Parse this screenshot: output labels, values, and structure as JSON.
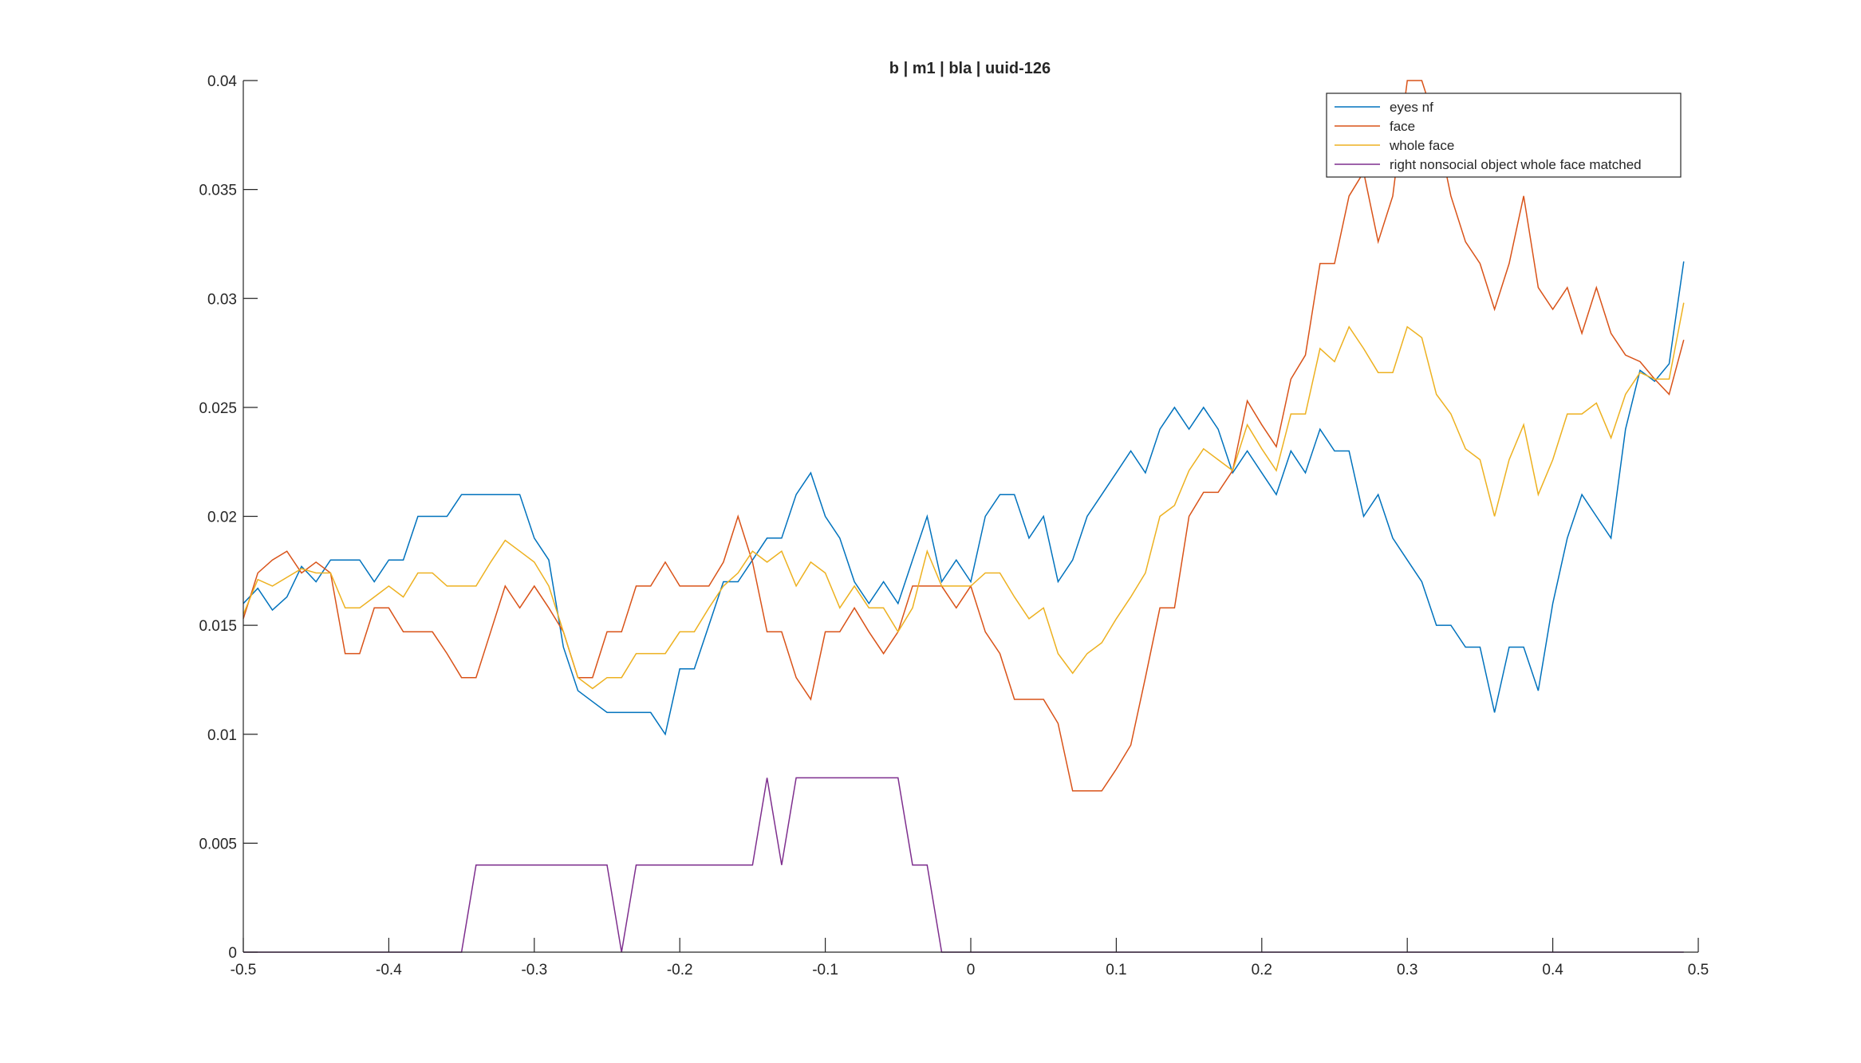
{
  "chart_data": {
    "type": "line",
    "title": "b | m1 | bla | uuid-126",
    "xlabel": "",
    "ylabel": "",
    "xlim": [
      -0.5,
      0.5
    ],
    "ylim": [
      0,
      0.04
    ],
    "xticks": [
      -0.5,
      -0.4,
      -0.3,
      -0.2,
      -0.1,
      0,
      0.1,
      0.2,
      0.3,
      0.4,
      0.5
    ],
    "xtick_labels": [
      "-0.5",
      "-0.4",
      "-0.3",
      "-0.2",
      "-0.1",
      "0",
      "0.1",
      "0.2",
      "0.3",
      "0.4",
      "0.5"
    ],
    "yticks": [
      0,
      0.005,
      0.01,
      0.015,
      0.02,
      0.025,
      0.03,
      0.035,
      0.04
    ],
    "ytick_labels": [
      "0",
      "0.005",
      "0.01",
      "0.015",
      "0.02",
      "0.025",
      "0.03",
      "0.035",
      "0.04"
    ],
    "grid": false,
    "legend_position": "top-right",
    "x": [
      -0.5,
      -0.49,
      -0.48,
      -0.47,
      -0.46,
      -0.45,
      -0.44,
      -0.43,
      -0.42,
      -0.41,
      -0.4,
      -0.39,
      -0.38,
      -0.37,
      -0.36,
      -0.35,
      -0.34,
      -0.33,
      -0.32,
      -0.31,
      -0.3,
      -0.29,
      -0.28,
      -0.27,
      -0.26,
      -0.25,
      -0.24,
      -0.23,
      -0.22,
      -0.21,
      -0.2,
      -0.19,
      -0.18,
      -0.17,
      -0.16,
      -0.15,
      -0.14,
      -0.13,
      -0.12,
      -0.11,
      -0.1,
      -0.09,
      -0.08,
      -0.07,
      -0.06,
      -0.05,
      -0.04,
      -0.03,
      -0.02,
      -0.01,
      0,
      0.01,
      0.02,
      0.03,
      0.04,
      0.05,
      0.06,
      0.07,
      0.08,
      0.09,
      0.1,
      0.11,
      0.12,
      0.13,
      0.14,
      0.15,
      0.16,
      0.17,
      0.18,
      0.19,
      0.2,
      0.21,
      0.22,
      0.23,
      0.24,
      0.25,
      0.26,
      0.27,
      0.28,
      0.29,
      0.3,
      0.31,
      0.32,
      0.33,
      0.34,
      0.35,
      0.36,
      0.37,
      0.38,
      0.39,
      0.4,
      0.41,
      0.42,
      0.43,
      0.44,
      0.45,
      0.46,
      0.47,
      0.48,
      0.49
    ],
    "series": [
      {
        "name": "eyes nf",
        "color": "#0072BD",
        "values": [
          0.016,
          0.0167,
          0.0157,
          0.0163,
          0.0177,
          0.017,
          0.018,
          0.018,
          0.018,
          0.017,
          0.018,
          0.018,
          0.02,
          0.02,
          0.02,
          0.021,
          0.021,
          0.021,
          0.021,
          0.021,
          0.019,
          0.018,
          0.014,
          0.012,
          0.0115,
          0.011,
          0.011,
          0.011,
          0.011,
          0.01,
          0.013,
          0.013,
          0.015,
          0.017,
          0.017,
          0.018,
          0.019,
          0.019,
          0.021,
          0.022,
          0.02,
          0.019,
          0.017,
          0.016,
          0.017,
          0.016,
          0.018,
          0.02,
          0.017,
          0.018,
          0.017,
          0.02,
          0.021,
          0.021,
          0.019,
          0.02,
          0.017,
          0.018,
          0.02,
          0.021,
          0.022,
          0.023,
          0.022,
          0.024,
          0.025,
          0.024,
          0.025,
          0.024,
          0.022,
          0.023,
          0.022,
          0.021,
          0.023,
          0.022,
          0.024,
          0.023,
          0.023,
          0.02,
          0.021,
          0.019,
          0.018,
          0.017,
          0.015,
          0.015,
          0.014,
          0.014,
          0.011,
          0.014,
          0.014,
          0.012,
          0.016,
          0.019,
          0.021,
          0.02,
          0.019,
          0.024,
          0.0267,
          0.0262,
          0.027,
          0.0317
        ]
      },
      {
        "name": "face",
        "color": "#D95319",
        "values": [
          0.0153,
          0.0174,
          0.018,
          0.0184,
          0.0174,
          0.0179,
          0.0174,
          0.0137,
          0.0137,
          0.0158,
          0.0158,
          0.0147,
          0.0147,
          0.0147,
          0.0137,
          0.0126,
          0.0126,
          0.0147,
          0.0168,
          0.0158,
          0.0168,
          0.0158,
          0.0147,
          0.0126,
          0.0126,
          0.0147,
          0.0147,
          0.0168,
          0.0168,
          0.0179,
          0.0168,
          0.0168,
          0.0168,
          0.0179,
          0.02,
          0.0179,
          0.0147,
          0.0147,
          0.0126,
          0.0116,
          0.0147,
          0.0147,
          0.0158,
          0.0147,
          0.0137,
          0.0147,
          0.0168,
          0.0168,
          0.0168,
          0.0158,
          0.0168,
          0.0147,
          0.0137,
          0.0116,
          0.0116,
          0.0116,
          0.0105,
          0.0074,
          0.0074,
          0.0074,
          0.0084,
          0.0095,
          0.0126,
          0.0158,
          0.0158,
          0.02,
          0.0211,
          0.0211,
          0.0221,
          0.0253,
          0.0242,
          0.0232,
          0.0263,
          0.0274,
          0.0316,
          0.0316,
          0.0347,
          0.0358,
          0.0326,
          0.0347,
          0.04,
          0.04,
          0.0379,
          0.0347,
          0.0326,
          0.0316,
          0.0295,
          0.0316,
          0.0347,
          0.0305,
          0.0295,
          0.0305,
          0.0284,
          0.0305,
          0.0284,
          0.0274,
          0.0271,
          0.0263,
          0.0256,
          0.0281
        ]
      },
      {
        "name": "whole face",
        "color": "#EDB120",
        "values": [
          0.0155,
          0.0171,
          0.0168,
          0.0172,
          0.0176,
          0.0174,
          0.0174,
          0.0158,
          0.0158,
          0.0163,
          0.0168,
          0.0163,
          0.0174,
          0.0174,
          0.0168,
          0.0168,
          0.0168,
          0.0179,
          0.0189,
          0.0184,
          0.0179,
          0.0168,
          0.0147,
          0.0126,
          0.0121,
          0.0126,
          0.0126,
          0.0137,
          0.0137,
          0.0137,
          0.0147,
          0.0147,
          0.0158,
          0.0168,
          0.0174,
          0.0184,
          0.0179,
          0.0184,
          0.0168,
          0.0179,
          0.0174,
          0.0158,
          0.0168,
          0.0158,
          0.0158,
          0.0147,
          0.0158,
          0.0184,
          0.0168,
          0.0168,
          0.0168,
          0.0174,
          0.0174,
          0.0163,
          0.0153,
          0.0158,
          0.0137,
          0.0128,
          0.0137,
          0.0142,
          0.0153,
          0.0163,
          0.0174,
          0.02,
          0.0205,
          0.0221,
          0.0231,
          0.0226,
          0.0221,
          0.0242,
          0.0231,
          0.0221,
          0.0247,
          0.0247,
          0.0277,
          0.0271,
          0.0287,
          0.0277,
          0.0266,
          0.0266,
          0.0287,
          0.0282,
          0.0256,
          0.0247,
          0.0231,
          0.0226,
          0.02,
          0.0226,
          0.0242,
          0.021,
          0.0226,
          0.0247,
          0.0247,
          0.0252,
          0.0236,
          0.0256,
          0.0266,
          0.0263,
          0.0263,
          0.0298
        ]
      },
      {
        "name": "right nonsocial object whole face matched",
        "color": "#7E2F8E",
        "values": [
          0,
          0,
          0,
          0,
          0,
          0,
          0,
          0,
          0,
          0,
          0,
          0,
          0,
          0,
          0,
          0,
          0.004,
          0.004,
          0.004,
          0.004,
          0.004,
          0.004,
          0.004,
          0.004,
          0.004,
          0.004,
          0,
          0.004,
          0.004,
          0.004,
          0.004,
          0.004,
          0.004,
          0.004,
          0.004,
          0.004,
          0.008,
          0.004,
          0.008,
          0.008,
          0.008,
          0.008,
          0.008,
          0.008,
          0.008,
          0.008,
          0.004,
          0.004,
          0,
          0,
          0,
          0,
          0,
          0,
          0,
          0,
          0,
          0,
          0,
          0,
          0,
          0,
          0,
          0,
          0,
          0,
          0,
          0,
          0,
          0,
          0,
          0,
          0,
          0,
          0,
          0,
          0,
          0,
          0,
          0,
          0,
          0,
          0,
          0,
          0,
          0,
          0,
          0,
          0,
          0,
          0,
          0,
          0,
          0,
          0,
          0,
          0,
          0,
          0,
          0
        ]
      }
    ]
  }
}
